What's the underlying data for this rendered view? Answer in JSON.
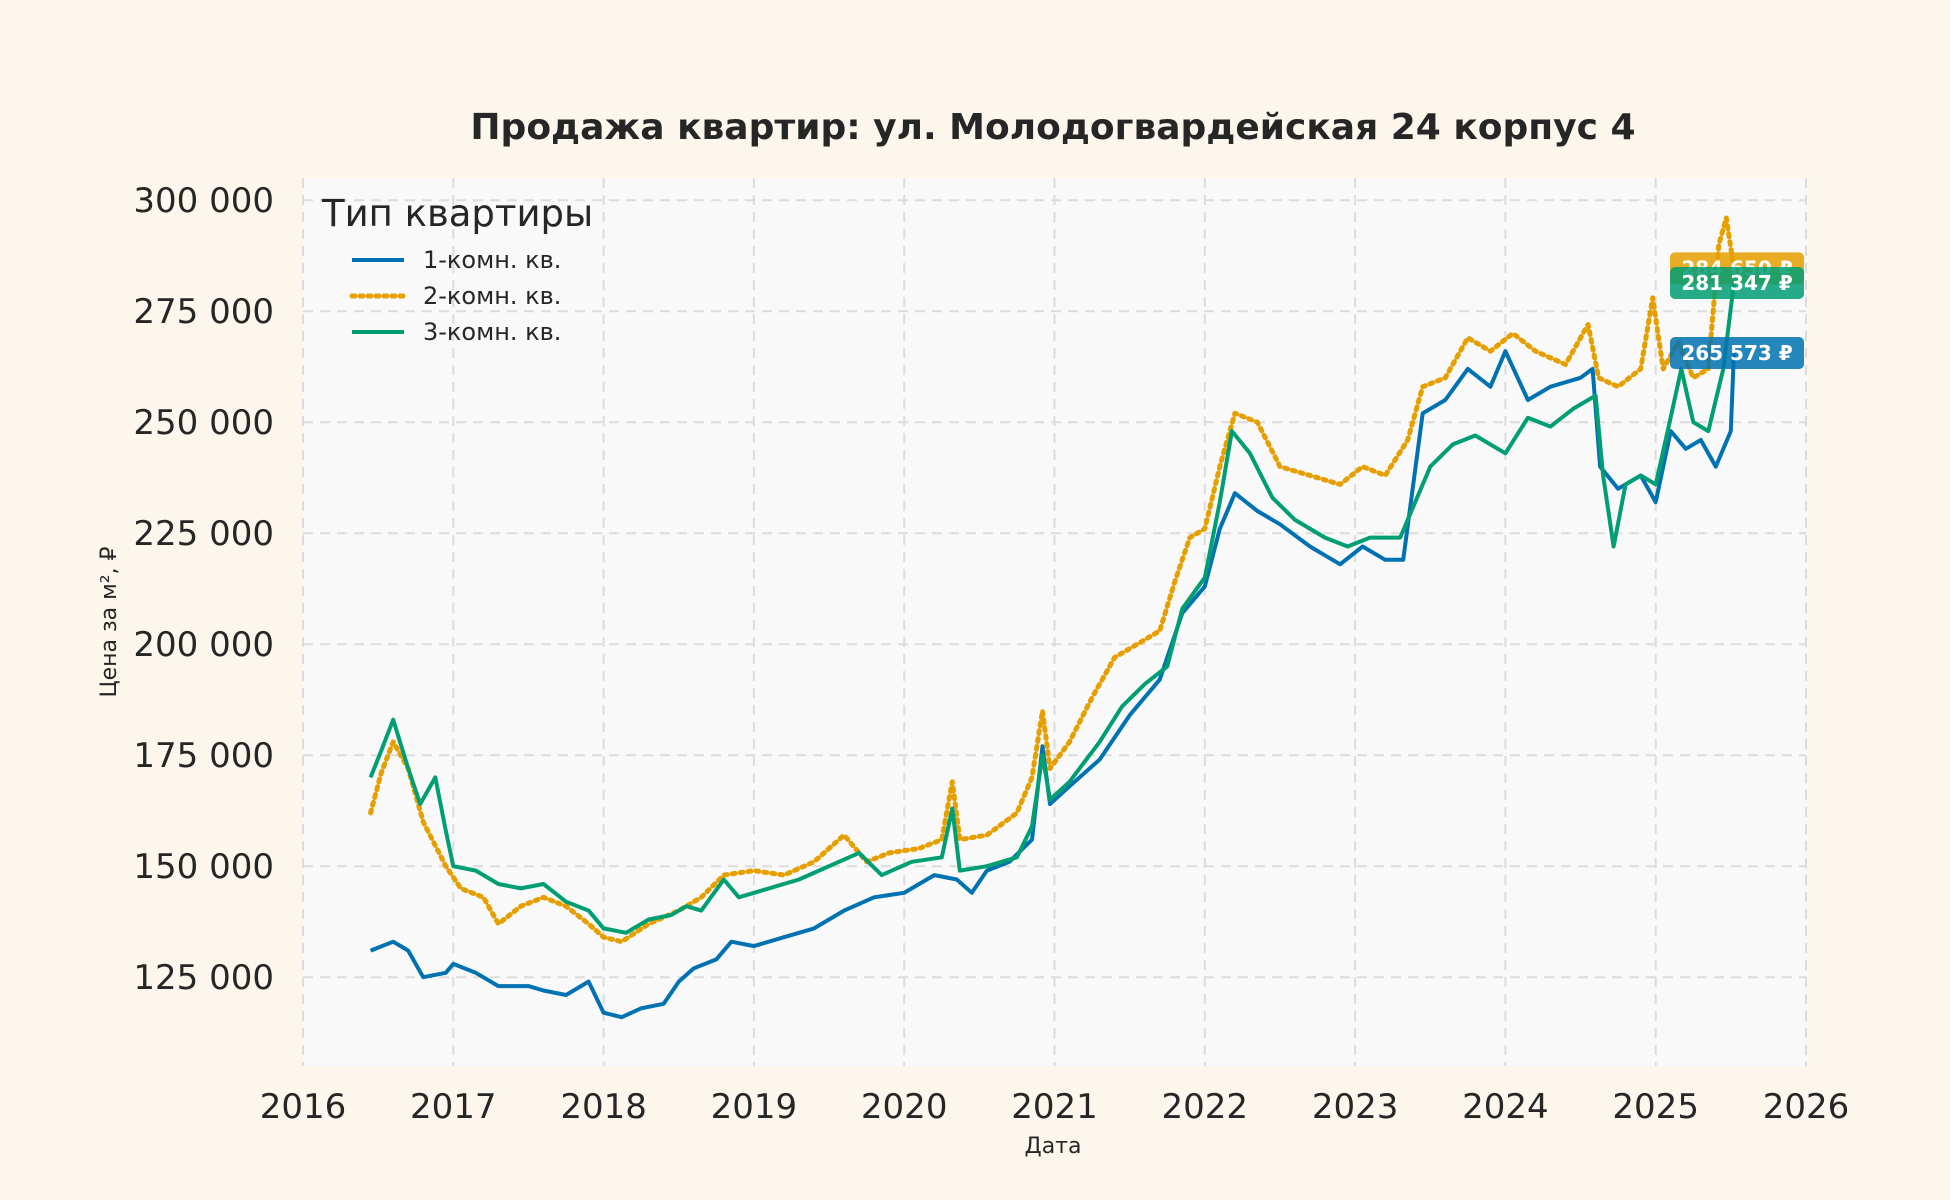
{
  "chart_data": {
    "type": "line",
    "title": "Продажа квартир: ул. Молодогвардейская 24 корпус 4",
    "xlabel": "Дата",
    "ylabel": "Цена за м², ₽",
    "xlim": [
      2016,
      2026
    ],
    "ylim": [
      105000,
      305000
    ],
    "x_ticks": [
      "2016",
      "2017",
      "2018",
      "2019",
      "2020",
      "2021",
      "2022",
      "2023",
      "2024",
      "2025",
      "2026"
    ],
    "y_ticks": [
      {
        "value": 125000,
        "label": "125 000"
      },
      {
        "value": 150000,
        "label": "150 000"
      },
      {
        "value": 175000,
        "label": "175 000"
      },
      {
        "value": 200000,
        "label": "200 000"
      },
      {
        "value": 225000,
        "label": "225 000"
      },
      {
        "value": 250000,
        "label": "250 000"
      },
      {
        "value": 275000,
        "label": "275 000"
      },
      {
        "value": 300000,
        "label": "300 000"
      }
    ],
    "grid": true,
    "legend": {
      "title": "Тип квартиры",
      "position": "top-left"
    },
    "series": [
      {
        "name": "1-комн. кв.",
        "color": "#0072b2",
        "style": "solid",
        "end_label": "265 573 ₽",
        "points": [
          [
            2016.45,
            131000
          ],
          [
            2016.6,
            133000
          ],
          [
            2016.7,
            131000
          ],
          [
            2016.8,
            125000
          ],
          [
            2016.95,
            126000
          ],
          [
            2017.0,
            128000
          ],
          [
            2017.15,
            126000
          ],
          [
            2017.3,
            123000
          ],
          [
            2017.5,
            123000
          ],
          [
            2017.6,
            122000
          ],
          [
            2017.75,
            121000
          ],
          [
            2017.9,
            124000
          ],
          [
            2018.0,
            117000
          ],
          [
            2018.12,
            116000
          ],
          [
            2018.25,
            118000
          ],
          [
            2018.4,
            119000
          ],
          [
            2018.5,
            124000
          ],
          [
            2018.6,
            127000
          ],
          [
            2018.75,
            129000
          ],
          [
            2018.85,
            133000
          ],
          [
            2019.0,
            132000
          ],
          [
            2019.2,
            134000
          ],
          [
            2019.4,
            136000
          ],
          [
            2019.6,
            140000
          ],
          [
            2019.8,
            143000
          ],
          [
            2020.0,
            144000
          ],
          [
            2020.2,
            148000
          ],
          [
            2020.35,
            147000
          ],
          [
            2020.45,
            144000
          ],
          [
            2020.55,
            149000
          ],
          [
            2020.7,
            151000
          ],
          [
            2020.85,
            156000
          ],
          [
            2020.92,
            177000
          ],
          [
            2020.97,
            164000
          ],
          [
            2021.1,
            168000
          ],
          [
            2021.3,
            174000
          ],
          [
            2021.5,
            184000
          ],
          [
            2021.7,
            192000
          ],
          [
            2021.85,
            207000
          ],
          [
            2022.0,
            213000
          ],
          [
            2022.1,
            226000
          ],
          [
            2022.2,
            234000
          ],
          [
            2022.35,
            230000
          ],
          [
            2022.5,
            227000
          ],
          [
            2022.7,
            222000
          ],
          [
            2022.9,
            218000
          ],
          [
            2023.05,
            222000
          ],
          [
            2023.2,
            219000
          ],
          [
            2023.32,
            219000
          ],
          [
            2023.45,
            252000
          ],
          [
            2023.6,
            255000
          ],
          [
            2023.75,
            262000
          ],
          [
            2023.9,
            258000
          ],
          [
            2024.0,
            266000
          ],
          [
            2024.15,
            255000
          ],
          [
            2024.3,
            258000
          ],
          [
            2024.5,
            260000
          ],
          [
            2024.58,
            262000
          ],
          [
            2024.63,
            240000
          ],
          [
            2024.75,
            235000
          ],
          [
            2024.9,
            238000
          ],
          [
            2025.0,
            232000
          ],
          [
            2025.1,
            248000
          ],
          [
            2025.2,
            244000
          ],
          [
            2025.3,
            246000
          ],
          [
            2025.4,
            240000
          ],
          [
            2025.5,
            248000
          ],
          [
            2025.52,
            265573
          ]
        ]
      },
      {
        "name": "2-комн. кв.",
        "color": "#e69f00",
        "style": "dotted",
        "end_label": "284 650 ₽",
        "points": [
          [
            2016.45,
            162000
          ],
          [
            2016.52,
            171000
          ],
          [
            2016.6,
            178000
          ],
          [
            2016.7,
            172000
          ],
          [
            2016.8,
            160000
          ],
          [
            2016.95,
            150000
          ],
          [
            2017.05,
            145000
          ],
          [
            2017.2,
            143000
          ],
          [
            2017.3,
            137000
          ],
          [
            2017.45,
            141000
          ],
          [
            2017.6,
            143000
          ],
          [
            2017.75,
            141000
          ],
          [
            2017.9,
            137000
          ],
          [
            2018.0,
            134000
          ],
          [
            2018.12,
            133000
          ],
          [
            2018.3,
            137000
          ],
          [
            2018.5,
            140000
          ],
          [
            2018.65,
            143000
          ],
          [
            2018.8,
            148000
          ],
          [
            2019.0,
            149000
          ],
          [
            2019.2,
            148000
          ],
          [
            2019.4,
            151000
          ],
          [
            2019.6,
            157000
          ],
          [
            2019.75,
            151000
          ],
          [
            2019.9,
            153000
          ],
          [
            2020.1,
            154000
          ],
          [
            2020.25,
            156000
          ],
          [
            2020.32,
            169000
          ],
          [
            2020.37,
            156000
          ],
          [
            2020.55,
            157000
          ],
          [
            2020.75,
            162000
          ],
          [
            2020.85,
            170000
          ],
          [
            2020.92,
            185000
          ],
          [
            2020.97,
            172000
          ],
          [
            2021.1,
            178000
          ],
          [
            2021.25,
            188000
          ],
          [
            2021.4,
            197000
          ],
          [
            2021.55,
            200000
          ],
          [
            2021.7,
            203000
          ],
          [
            2021.8,
            214000
          ],
          [
            2021.9,
            224000
          ],
          [
            2022.0,
            226000
          ],
          [
            2022.1,
            240000
          ],
          [
            2022.2,
            252000
          ],
          [
            2022.35,
            250000
          ],
          [
            2022.5,
            240000
          ],
          [
            2022.7,
            238000
          ],
          [
            2022.9,
            236000
          ],
          [
            2023.05,
            240000
          ],
          [
            2023.2,
            238000
          ],
          [
            2023.35,
            246000
          ],
          [
            2023.45,
            258000
          ],
          [
            2023.6,
            260000
          ],
          [
            2023.75,
            269000
          ],
          [
            2023.9,
            266000
          ],
          [
            2024.05,
            270000
          ],
          [
            2024.2,
            266000
          ],
          [
            2024.4,
            263000
          ],
          [
            2024.55,
            272000
          ],
          [
            2024.62,
            260000
          ],
          [
            2024.75,
            258000
          ],
          [
            2024.9,
            262000
          ],
          [
            2024.98,
            278000
          ],
          [
            2025.05,
            262000
          ],
          [
            2025.15,
            268000
          ],
          [
            2025.25,
            260000
          ],
          [
            2025.35,
            262000
          ],
          [
            2025.42,
            290000
          ],
          [
            2025.47,
            296000
          ],
          [
            2025.52,
            284650
          ]
        ]
      },
      {
        "name": "3-комн. кв.",
        "color": "#009e73",
        "style": "solid",
        "end_label": "281 347 ₽",
        "points": [
          [
            2016.45,
            170000
          ],
          [
            2016.52,
            176000
          ],
          [
            2016.6,
            183000
          ],
          [
            2016.7,
            172000
          ],
          [
            2016.78,
            164000
          ],
          [
            2016.88,
            170000
          ],
          [
            2016.95,
            158000
          ],
          [
            2017.0,
            150000
          ],
          [
            2017.15,
            149000
          ],
          [
            2017.3,
            146000
          ],
          [
            2017.45,
            145000
          ],
          [
            2017.6,
            146000
          ],
          [
            2017.75,
            142000
          ],
          [
            2017.9,
            140000
          ],
          [
            2018.0,
            136000
          ],
          [
            2018.15,
            135000
          ],
          [
            2018.3,
            138000
          ],
          [
            2018.45,
            139000
          ],
          [
            2018.55,
            141000
          ],
          [
            2018.65,
            140000
          ],
          [
            2018.8,
            147000
          ],
          [
            2018.9,
            143000
          ],
          [
            2019.1,
            145000
          ],
          [
            2019.3,
            147000
          ],
          [
            2019.5,
            150000
          ],
          [
            2019.7,
            153000
          ],
          [
            2019.85,
            148000
          ],
          [
            2020.05,
            151000
          ],
          [
            2020.25,
            152000
          ],
          [
            2020.32,
            163000
          ],
          [
            2020.37,
            149000
          ],
          [
            2020.55,
            150000
          ],
          [
            2020.75,
            152000
          ],
          [
            2020.85,
            159000
          ],
          [
            2020.92,
            175000
          ],
          [
            2020.97,
            165000
          ],
          [
            2021.1,
            169000
          ],
          [
            2021.3,
            178000
          ],
          [
            2021.45,
            186000
          ],
          [
            2021.6,
            191000
          ],
          [
            2021.75,
            195000
          ],
          [
            2021.85,
            208000
          ],
          [
            2022.0,
            215000
          ],
          [
            2022.1,
            232000
          ],
          [
            2022.18,
            248000
          ],
          [
            2022.3,
            243000
          ],
          [
            2022.45,
            233000
          ],
          [
            2022.6,
            228000
          ],
          [
            2022.8,
            224000
          ],
          [
            2022.95,
            222000
          ],
          [
            2023.1,
            224000
          ],
          [
            2023.3,
            224000
          ],
          [
            2023.4,
            232000
          ],
          [
            2023.5,
            240000
          ],
          [
            2023.65,
            245000
          ],
          [
            2023.8,
            247000
          ],
          [
            2024.0,
            243000
          ],
          [
            2024.15,
            251000
          ],
          [
            2024.3,
            249000
          ],
          [
            2024.45,
            253000
          ],
          [
            2024.6,
            256000
          ],
          [
            2024.65,
            238000
          ],
          [
            2024.72,
            222000
          ],
          [
            2024.8,
            236000
          ],
          [
            2024.9,
            238000
          ],
          [
            2025.0,
            236000
          ],
          [
            2025.08,
            248000
          ],
          [
            2025.17,
            262000
          ],
          [
            2025.25,
            250000
          ],
          [
            2025.35,
            248000
          ],
          [
            2025.45,
            262000
          ],
          [
            2025.52,
            281347
          ]
        ]
      }
    ]
  }
}
